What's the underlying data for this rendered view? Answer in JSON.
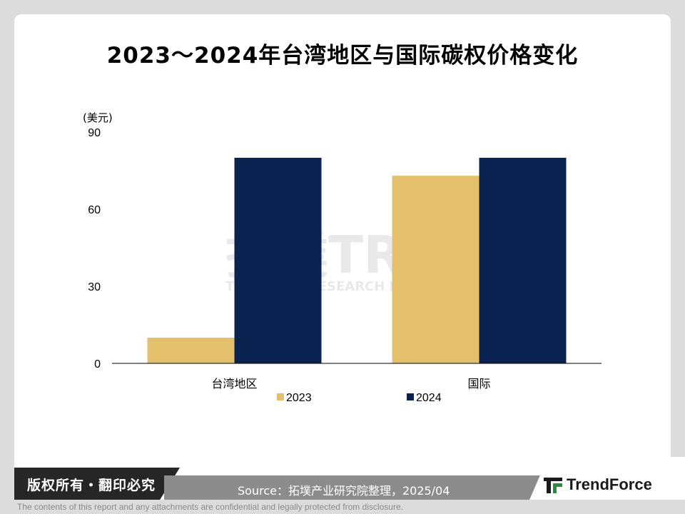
{
  "title": "2023～2024年台湾地区与国际碳权价格变化",
  "watermark": {
    "main": "拓墣TRi",
    "sub": "TOPOLOGY RESEARCH INSTITUTE"
  },
  "chart_data": {
    "type": "bar",
    "unit_label": "(美元)",
    "categories": [
      "台湾地区",
      "国际"
    ],
    "series": [
      {
        "name": "2023",
        "values": [
          10,
          73
        ],
        "color": "#e4c06c"
      },
      {
        "name": "2024",
        "values": [
          80,
          80
        ],
        "color": "#0b2350"
      }
    ],
    "yticks": [
      0,
      30,
      60,
      90
    ],
    "ylim": [
      0,
      90
    ],
    "grid": false,
    "legend": "bottom-center"
  },
  "footer": {
    "copyright": "版权所有・翻印必究",
    "source": "Source：拓墣产业研究院整理，2025/04",
    "brand": "TrendForce",
    "disclaimer": "The contents of this report and any attachments are confidential and legally protected from disclosure."
  },
  "colors": {
    "footer_dark": "#262626",
    "footer_gray": "#8c8c8c",
    "logo_green": "#2e8b3d"
  }
}
